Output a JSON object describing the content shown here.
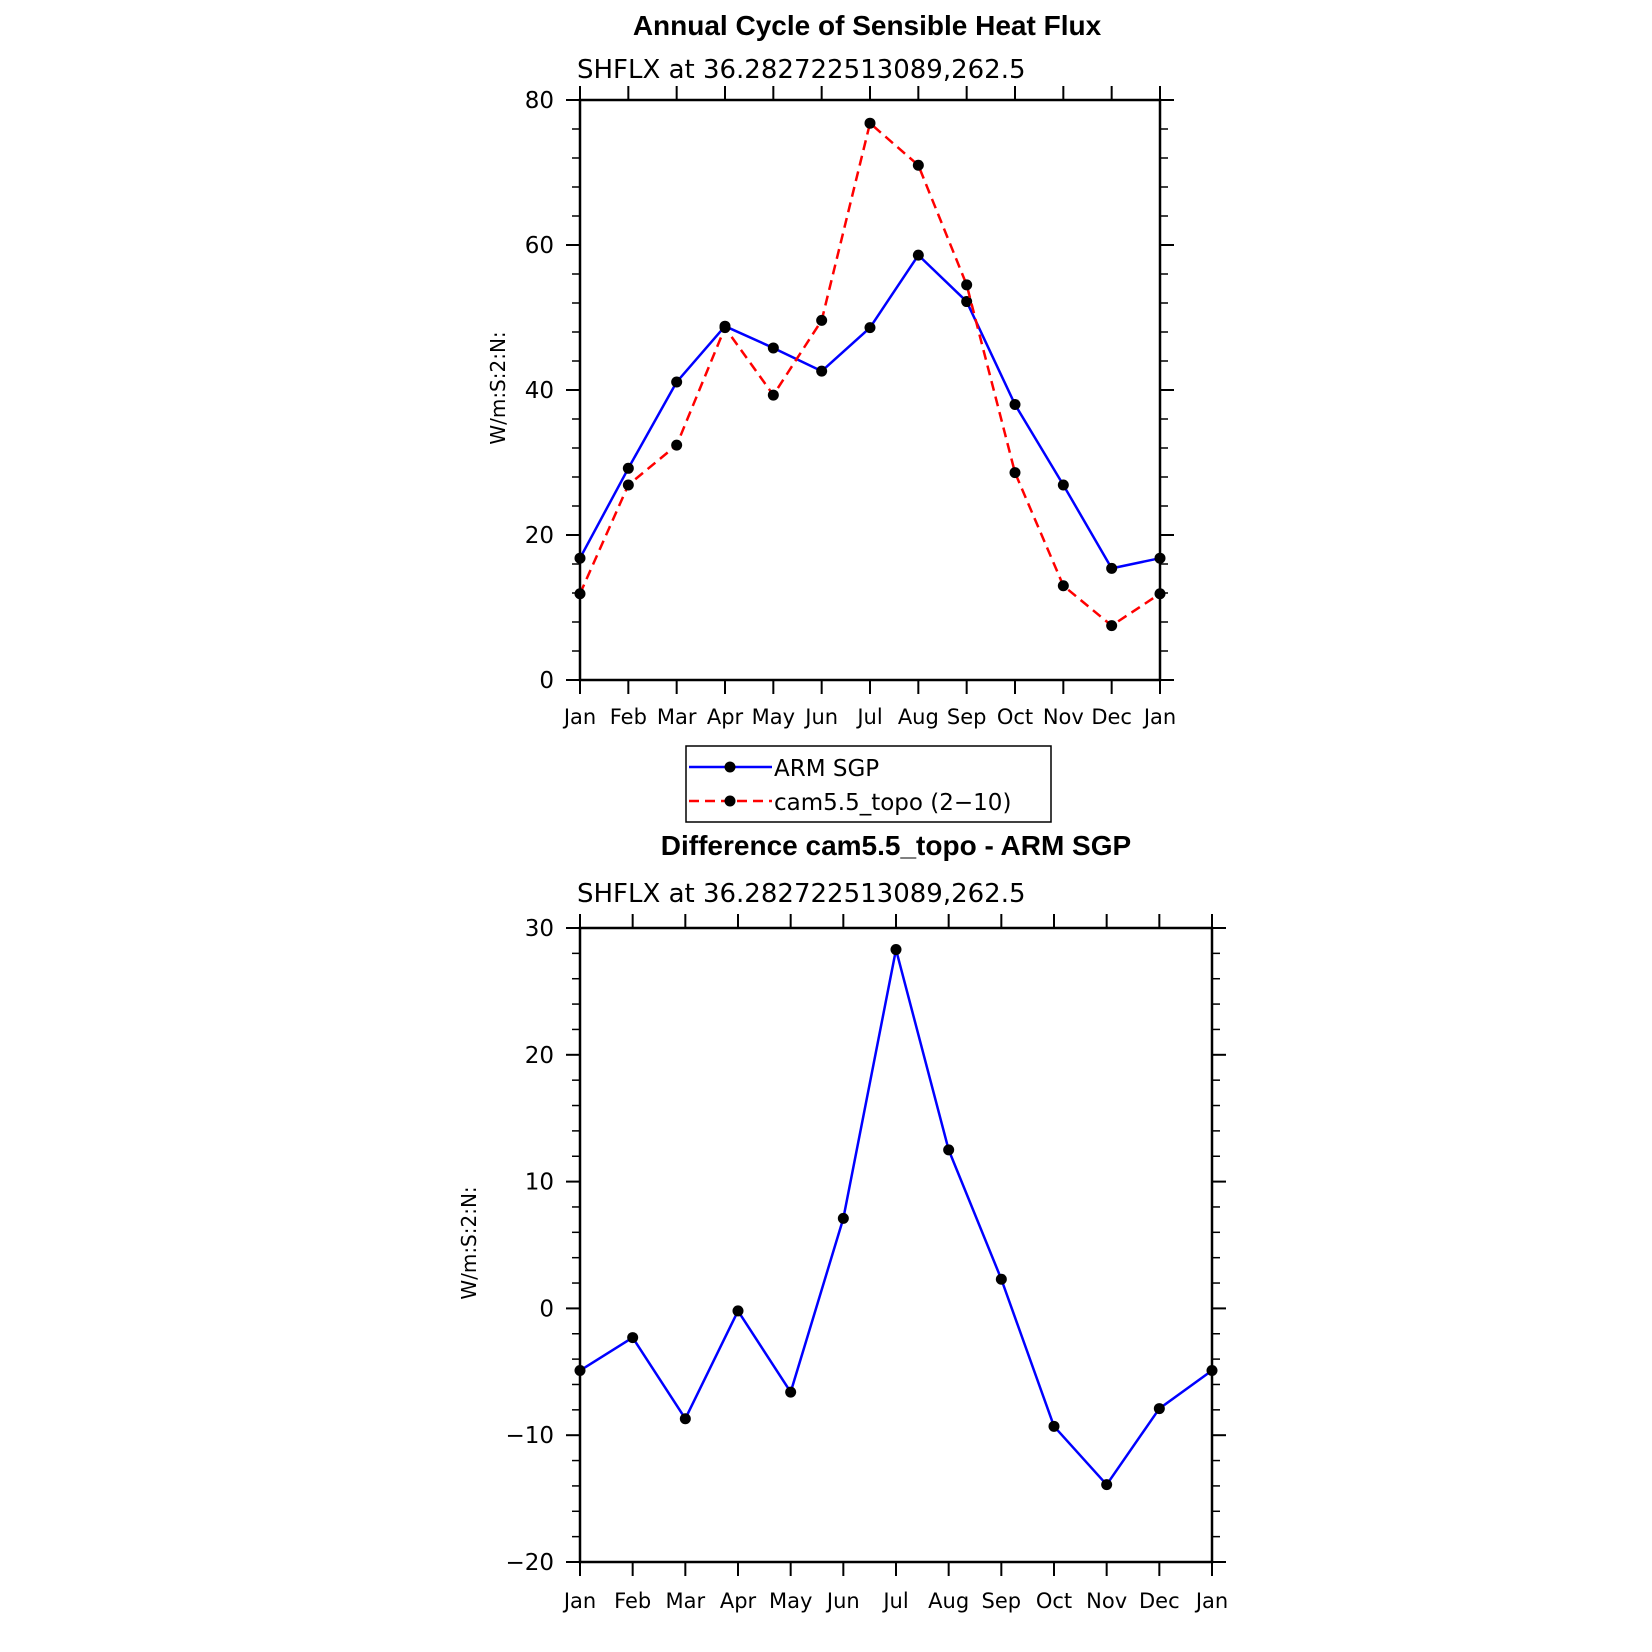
{
  "chart_data": [
    {
      "type": "line",
      "title": "Annual Cycle of Sensible Heat Flux",
      "subtitle": "SHFLX at 36.282722513089,262.5",
      "ylabel": "W/m:S:2:N:",
      "xlabel": "",
      "categories": [
        "Jan",
        "Feb",
        "Mar",
        "Apr",
        "May",
        "Jun",
        "Jul",
        "Aug",
        "Sep",
        "Oct",
        "Nov",
        "Dec",
        "Jan"
      ],
      "ylim": [
        0,
        80
      ],
      "yticks": [
        "0",
        "20",
        "40",
        "60",
        "80"
      ],
      "series": [
        {
          "name": "ARM SGP",
          "color": "#0000ff",
          "dash": "solid",
          "values": [
            16.8,
            29.2,
            41.1,
            48.8,
            45.8,
            42.6,
            48.6,
            58.6,
            52.2,
            38.0,
            26.9,
            15.4,
            16.8
          ]
        },
        {
          "name": "cam5.5_topo (2−10)",
          "color": "#ff0000",
          "dash": "dashed",
          "values": [
            11.9,
            26.9,
            32.4,
            48.6,
            39.3,
            49.6,
            76.8,
            71.0,
            54.5,
            28.6,
            13.0,
            7.5,
            11.9
          ]
        }
      ],
      "legend": "below"
    },
    {
      "type": "line",
      "title": "Difference cam5.5_topo - ARM SGP",
      "subtitle": "SHFLX at 36.282722513089,262.5",
      "ylabel": "W/m:S:2:N:",
      "xlabel": "",
      "categories": [
        "Jan",
        "Feb",
        "Mar",
        "Apr",
        "May",
        "Jun",
        "Jul",
        "Aug",
        "Sep",
        "Oct",
        "Nov",
        "Dec",
        "Jan"
      ],
      "ylim": [
        -20,
        30
      ],
      "yticks": [
        "−20",
        "−10",
        "0",
        "10",
        "20",
        "30"
      ],
      "series": [
        {
          "name": "",
          "color": "#0000ff",
          "dash": "solid",
          "values": [
            -4.9,
            -2.3,
            -8.7,
            -0.2,
            -6.6,
            7.1,
            28.3,
            12.5,
            2.3,
            -9.3,
            -13.9,
            -7.9,
            -4.9
          ]
        }
      ]
    }
  ]
}
